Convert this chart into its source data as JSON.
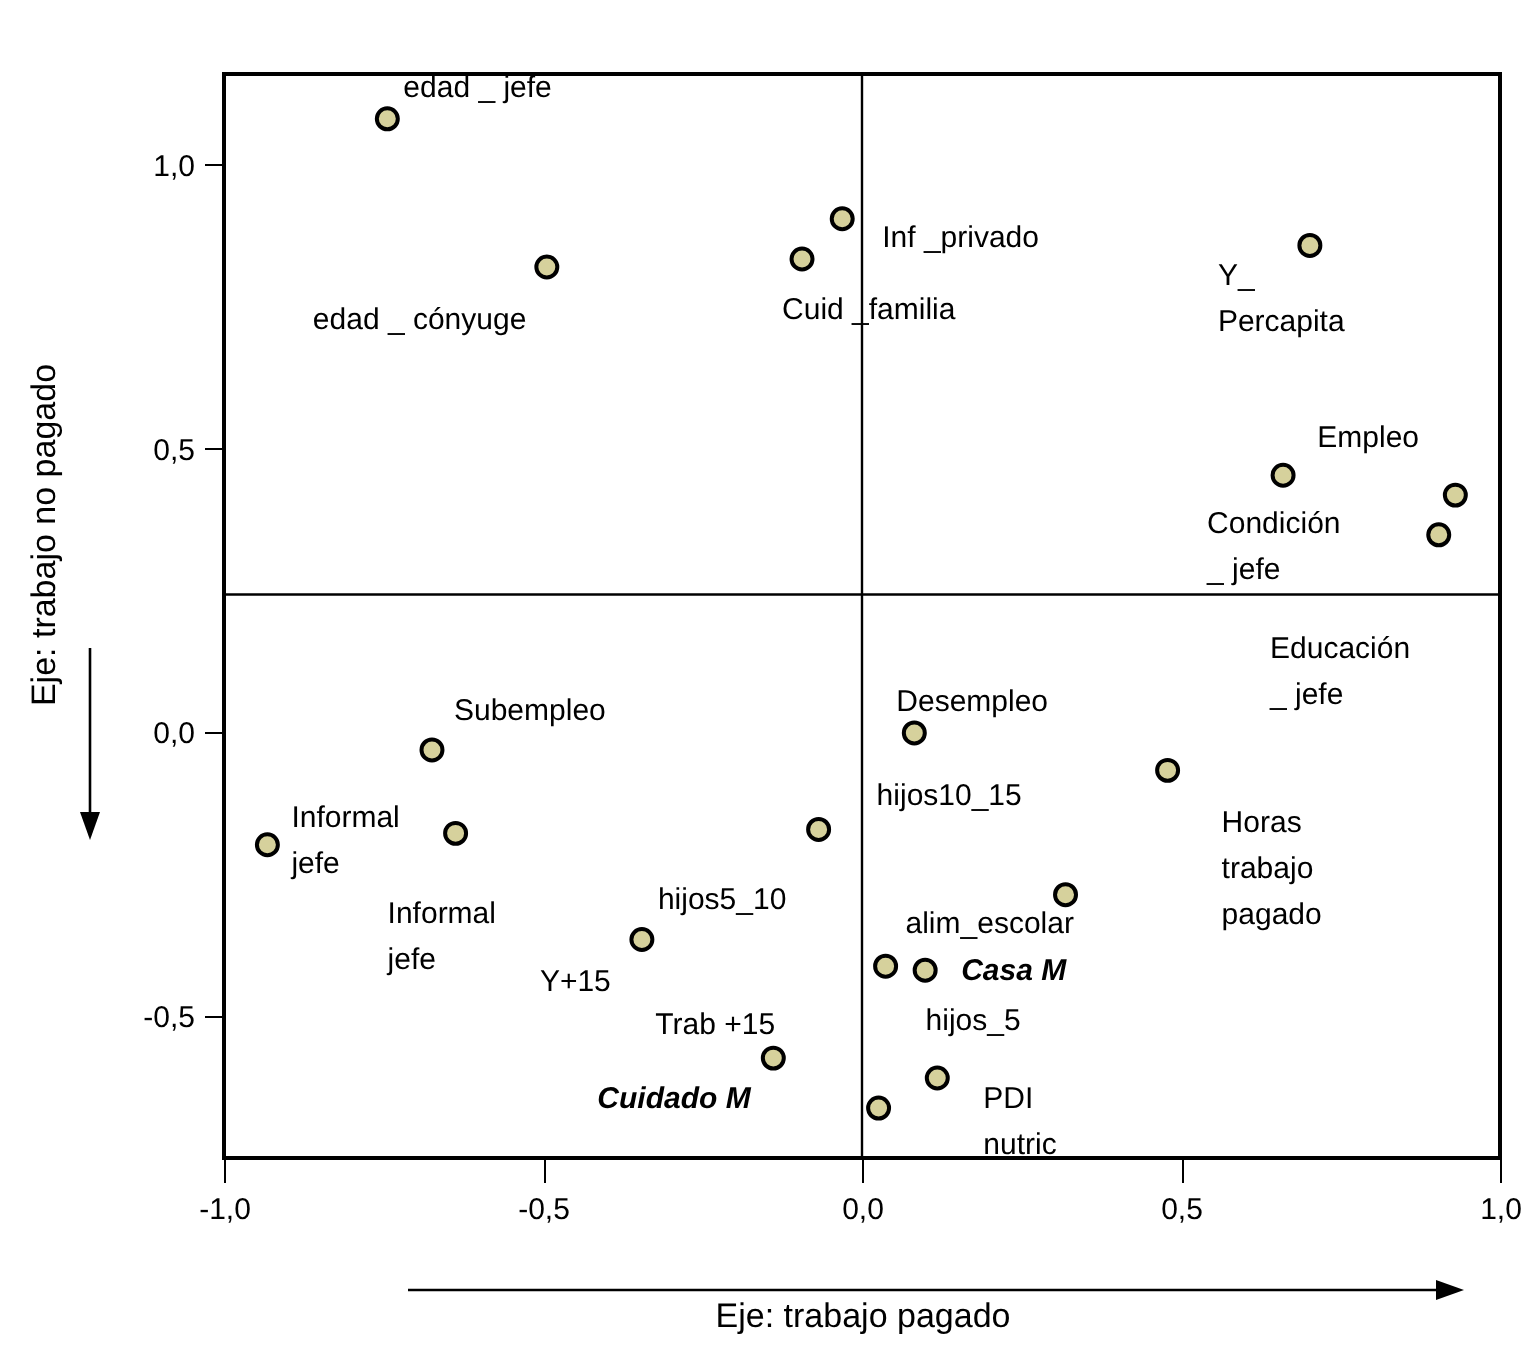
{
  "chart_data": {
    "type": "scatter",
    "xlabel": "Eje: trabajo pagado",
    "ylabel": "Eje: trabajo no pagado",
    "x": [
      -0.744,
      -0.494,
      -0.031,
      -0.094,
      0.702,
      0.66,
      0.93,
      0.904,
      -0.674,
      -0.932,
      -0.637,
      -0.068,
      -0.345,
      -0.139,
      0.082,
      0.479,
      0.319,
      0.037,
      0.099,
      0.118,
      0.026
    ],
    "values": [
      1.081,
      0.82,
      0.905,
      0.834,
      0.858,
      0.453,
      0.418,
      0.348,
      -0.031,
      -0.198,
      -0.178,
      -0.171,
      -0.365,
      -0.574,
      -0.001,
      -0.067,
      -0.286,
      -0.412,
      -0.419,
      -0.609,
      -0.662
    ],
    "color": "#d6d19c",
    "marker": "circle",
    "xlim": [
      -1,
      1
    ],
    "ylim": [
      -0.75,
      1.16
    ],
    "xticks": [
      {
        "value": -1,
        "label": "-1,0"
      },
      {
        "value": -0.5,
        "label": "-0,5"
      },
      {
        "value": 0,
        "label": "0,0"
      },
      {
        "value": 0.5,
        "label": "0,5"
      },
      {
        "value": 1,
        "label": "1,0"
      }
    ],
    "yticks": [
      {
        "value": -0.5,
        "label": "-0,5"
      },
      {
        "value": 0,
        "label": "0,0"
      },
      {
        "value": 0.5,
        "label": "0,5"
      },
      {
        "value": 1,
        "label": "1,0"
      }
    ],
    "ref_lines": [
      {
        "axis": "x",
        "value": 0
      },
      {
        "axis": "y",
        "value": 0.243
      }
    ],
    "annotations": [
      {
        "text": "edad _ jefe",
        "x": -0.744,
        "y": 1.081
      },
      {
        "text": "edad _ cónyuge",
        "x": -0.494,
        "y": 0.82
      },
      {
        "text": "Inf _privado",
        "x": -0.031,
        "y": 0.905
      },
      {
        "text": "Cuid _familia",
        "x": -0.094,
        "y": 0.834
      },
      {
        "text": "Y_\nPercapita",
        "x": 0.702,
        "y": 0.858
      },
      {
        "text": "Empleo",
        "x": 0.93,
        "y": 0.418
      },
      {
        "text": "Condición\n_ jefe",
        "x": 0.66,
        "y": 0.453
      },
      "Educación\n_ jefe",
      {
        "text": "Subempleo",
        "x": -0.674,
        "y": -0.031
      },
      {
        "text": "Informal\njefe",
        "x": -0.932,
        "y": -0.198
      },
      {
        "text": "Informal\njefe",
        "x": -0.637,
        "y": -0.178
      },
      {
        "text": "hijos5_10",
        "x": -0.345,
        "y": -0.365
      },
      {
        "text": "Y+15",
        "x": -0.345,
        "y": -0.365
      },
      {
        "text": "Trab +15",
        "x": -0.139,
        "y": -0.574
      },
      {
        "text": "Cuidado M",
        "x": -0.139,
        "y": -0.574
      },
      {
        "text": "Desempleo",
        "x": 0.082,
        "y": -0.001
      },
      {
        "text": "hijos10_15",
        "x": -0.068,
        "y": -0.171
      },
      {
        "text": "Horas\ntrabajo\npagado",
        "x": 0.479,
        "y": -0.067
      },
      {
        "text": "alim_escolar",
        "x": 0.319,
        "y": -0.286
      },
      {
        "text": "Casa M",
        "x": 0.099,
        "y": -0.419
      },
      {
        "text": "hijos_5",
        "x": 0.037,
        "y": -0.412
      },
      {
        "text": "PDI\nnutric",
        "x": 0.118,
        "y": -0.609
      }
    ]
  }
}
